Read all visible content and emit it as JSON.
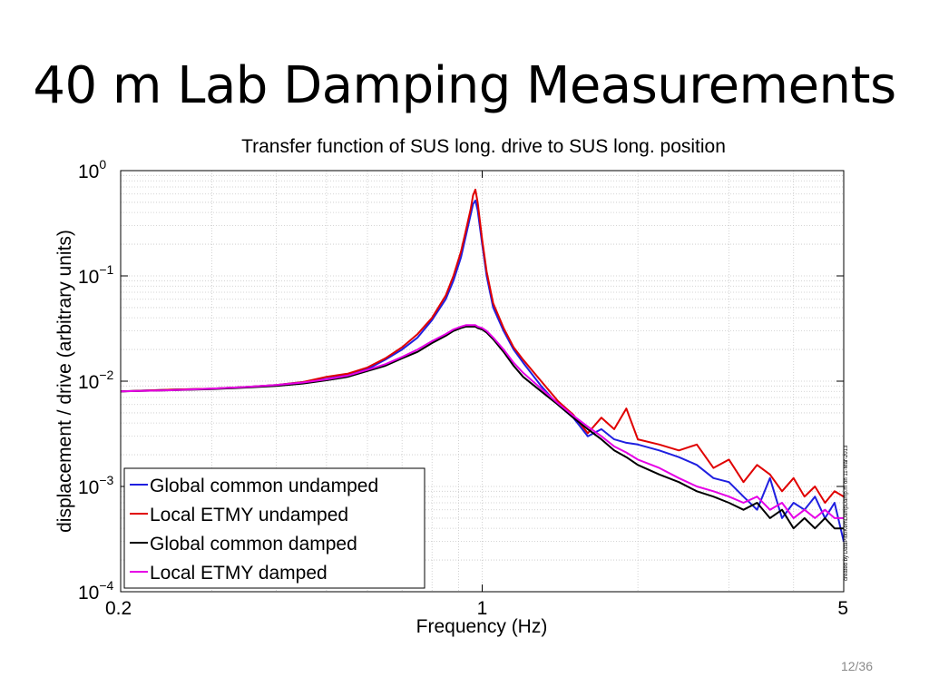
{
  "slide": {
    "title": "40 m Lab Damping Measurements",
    "page_number": "12/36"
  },
  "colors": {
    "series_blue": "#1f1fe0",
    "series_red": "#e00000",
    "series_black": "#000000",
    "series_magenta": "#e600e6"
  },
  "chart_data": {
    "type": "line",
    "title": "Transfer function of SUS long. drive to SUS long. position",
    "xlabel": "Frequency (Hz)",
    "ylabel": "displacement / drive (arbitrary units)",
    "xscale": "log",
    "yscale": "log",
    "xlim": [
      0.2,
      5
    ],
    "ylim": [
      0.0001,
      1
    ],
    "x_ticks": [
      0.2,
      1,
      5
    ],
    "x_tick_labels": [
      "0.2",
      "1",
      "5"
    ],
    "y_ticks": [
      1,
      0.1,
      0.01,
      0.001,
      0.0001
    ],
    "y_tick_labels": [
      {
        "base": "10",
        "exp": "0"
      },
      {
        "base": "10",
        "exp": "−1"
      },
      {
        "base": "10",
        "exp": "−2"
      },
      {
        "base": "10",
        "exp": "−3"
      },
      {
        "base": "10",
        "exp": "−4"
      }
    ],
    "grid": true,
    "legend_position": "bottom-left",
    "annotation": "created by DataPlot/KemDampDamp.m on 11-Mar-2013",
    "x": [
      0.2,
      0.25,
      0.3,
      0.35,
      0.4,
      0.45,
      0.5,
      0.55,
      0.6,
      0.65,
      0.7,
      0.75,
      0.8,
      0.85,
      0.88,
      0.91,
      0.93,
      0.95,
      0.96,
      0.97,
      0.98,
      1.0,
      1.02,
      1.05,
      1.1,
      1.15,
      1.2,
      1.3,
      1.4,
      1.5,
      1.6,
      1.7,
      1.8,
      1.9,
      2.0,
      2.2,
      2.4,
      2.6,
      2.8,
      3.0,
      3.2,
      3.4,
      3.6,
      3.8,
      4.0,
      4.2,
      4.4,
      4.6,
      4.8,
      5.0
    ],
    "series": [
      {
        "name": "Global common undamped",
        "color": "#1f1fe0",
        "values": [
          0.008,
          0.0083,
          0.0085,
          0.0088,
          0.0092,
          0.0098,
          0.0105,
          0.0115,
          0.013,
          0.016,
          0.02,
          0.026,
          0.038,
          0.06,
          0.09,
          0.15,
          0.24,
          0.38,
          0.48,
          0.52,
          0.42,
          0.2,
          0.1,
          0.05,
          0.03,
          0.02,
          0.015,
          0.009,
          0.006,
          0.0045,
          0.003,
          0.0035,
          0.0028,
          0.0026,
          0.0025,
          0.0022,
          0.0019,
          0.0016,
          0.0012,
          0.0011,
          0.0008,
          0.0006,
          0.0012,
          0.0005,
          0.0007,
          0.0006,
          0.0008,
          0.0005,
          0.0007,
          0.0003
        ]
      },
      {
        "name": "Local ETMY undamped",
        "color": "#e00000",
        "values": [
          0.008,
          0.0083,
          0.0085,
          0.0088,
          0.0092,
          0.0098,
          0.011,
          0.0118,
          0.0135,
          0.0165,
          0.021,
          0.028,
          0.04,
          0.065,
          0.1,
          0.17,
          0.27,
          0.43,
          0.58,
          0.66,
          0.5,
          0.22,
          0.11,
          0.055,
          0.032,
          0.021,
          0.016,
          0.01,
          0.0065,
          0.0048,
          0.0032,
          0.0045,
          0.0035,
          0.0055,
          0.0028,
          0.0025,
          0.0022,
          0.0025,
          0.0015,
          0.0018,
          0.0011,
          0.0016,
          0.0013,
          0.0009,
          0.0012,
          0.0008,
          0.001,
          0.0007,
          0.0009,
          0.0008
        ]
      },
      {
        "name": "Global common damped",
        "color": "#000000",
        "values": [
          0.008,
          0.0082,
          0.0084,
          0.0087,
          0.009,
          0.0095,
          0.0102,
          0.011,
          0.0125,
          0.014,
          0.0165,
          0.019,
          0.023,
          0.027,
          0.03,
          0.032,
          0.033,
          0.033,
          0.033,
          0.033,
          0.032,
          0.031,
          0.029,
          0.025,
          0.019,
          0.014,
          0.011,
          0.008,
          0.006,
          0.0045,
          0.0035,
          0.0028,
          0.0022,
          0.0019,
          0.0016,
          0.0013,
          0.0011,
          0.0009,
          0.0008,
          0.0007,
          0.0006,
          0.0007,
          0.0005,
          0.0006,
          0.0004,
          0.0005,
          0.0004,
          0.0005,
          0.0004,
          0.0004
        ]
      },
      {
        "name": "Local ETMY damped",
        "color": "#e600e6",
        "values": [
          0.008,
          0.0082,
          0.0085,
          0.0088,
          0.0092,
          0.0097,
          0.0104,
          0.0113,
          0.0128,
          0.0145,
          0.017,
          0.02,
          0.024,
          0.028,
          0.031,
          0.033,
          0.034,
          0.034,
          0.034,
          0.034,
          0.033,
          0.032,
          0.03,
          0.026,
          0.02,
          0.015,
          0.012,
          0.0085,
          0.0062,
          0.0047,
          0.0037,
          0.003,
          0.0024,
          0.0021,
          0.0018,
          0.0015,
          0.0012,
          0.001,
          0.0009,
          0.0008,
          0.0007,
          0.0008,
          0.0006,
          0.0007,
          0.0005,
          0.0006,
          0.0005,
          0.0006,
          0.0005,
          0.0005
        ]
      }
    ]
  }
}
